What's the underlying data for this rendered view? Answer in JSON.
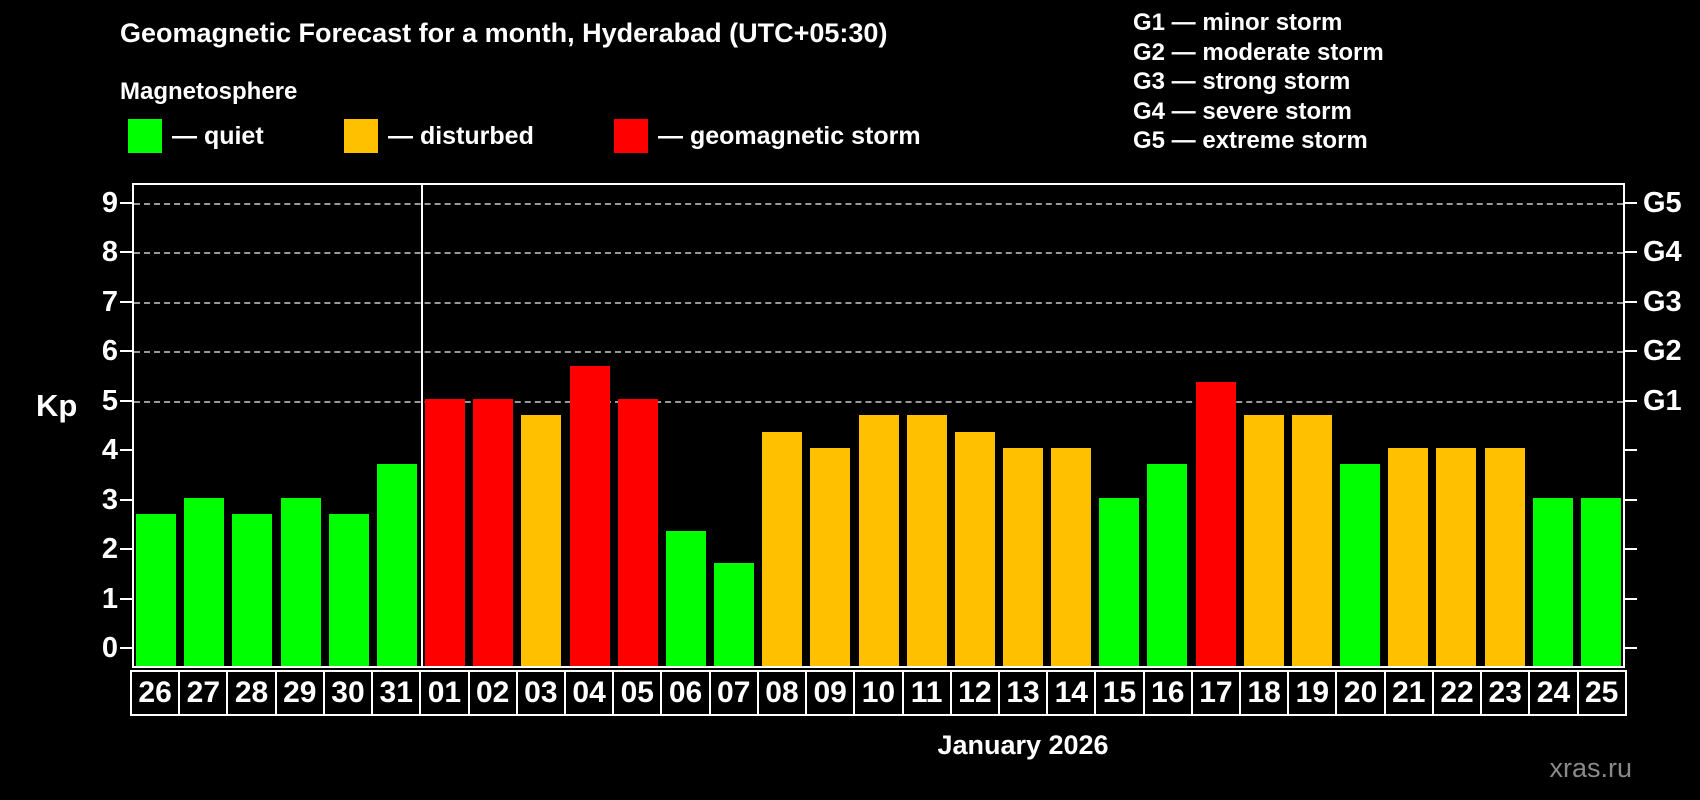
{
  "title": "Geomagnetic Forecast for a month, Hyderabad (UTC+05:30)",
  "subtitle": "Magnetosphere",
  "legend": {
    "items": [
      {
        "status": "quiet",
        "label": "— quiet"
      },
      {
        "status": "disturbed",
        "label": "— disturbed"
      },
      {
        "status": "storm",
        "label": "— geomagnetic storm"
      }
    ]
  },
  "g_legend": [
    "G1 — minor storm",
    "G2 — moderate storm",
    "G3 — strong storm",
    "G4 — severe storm",
    "G5 — extreme storm"
  ],
  "axis": {
    "kp_label": "Kp",
    "y_ticks": [
      0,
      1,
      2,
      3,
      4,
      5,
      6,
      7,
      8,
      9
    ],
    "right_labels": [
      {
        "label": "G1",
        "kp": 5
      },
      {
        "label": "G2",
        "kp": 6
      },
      {
        "label": "G3",
        "kp": 7
      },
      {
        "label": "G4",
        "kp": 8
      },
      {
        "label": "G5",
        "kp": 9
      }
    ]
  },
  "footer": {
    "month_label": "January 2026",
    "watermark": "xras.ru"
  },
  "colors": {
    "quiet": "#00ff00",
    "disturbed": "#ffc000",
    "storm": "#ff0000",
    "axis": "#ffffff",
    "grid": "#999999",
    "watermark": "#8a8a8a"
  },
  "chart_data": {
    "type": "bar",
    "title": "Geomagnetic Forecast for a month, Hyderabad (UTC+05:30)",
    "xlabel": "January 2026",
    "ylabel": "Kp",
    "ylim": [
      0,
      9
    ],
    "grid": "horizontal dashed at Kp 5,6,7,8,9",
    "grid_kp_levels": [
      5,
      6,
      7,
      8,
      9
    ],
    "legend_position": "top",
    "categories": [
      "26",
      "27",
      "28",
      "29",
      "30",
      "31",
      "01",
      "02",
      "03",
      "04",
      "05",
      "06",
      "07",
      "08",
      "09",
      "10",
      "11",
      "12",
      "13",
      "14",
      "15",
      "16",
      "17",
      "18",
      "19",
      "20",
      "21",
      "22",
      "23",
      "24",
      "25"
    ],
    "values": [
      2.67,
      3,
      2.67,
      3,
      2.67,
      3.67,
      5,
      5,
      4.67,
      5.67,
      5,
      2.33,
      1.67,
      4.33,
      4,
      4.67,
      4.67,
      4.33,
      4,
      4,
      3,
      3.67,
      5.33,
      4.67,
      4.67,
      3.67,
      4,
      4,
      4,
      3,
      3
    ],
    "statuses": [
      "quiet",
      "quiet",
      "quiet",
      "quiet",
      "quiet",
      "quiet",
      "storm",
      "storm",
      "disturbed",
      "storm",
      "storm",
      "quiet",
      "quiet",
      "disturbed",
      "disturbed",
      "disturbed",
      "disturbed",
      "disturbed",
      "disturbed",
      "disturbed",
      "quiet",
      "quiet",
      "storm",
      "disturbed",
      "disturbed",
      "quiet",
      "disturbed",
      "disturbed",
      "disturbed",
      "quiet",
      "quiet"
    ],
    "month_boundary_after_index": 5
  }
}
